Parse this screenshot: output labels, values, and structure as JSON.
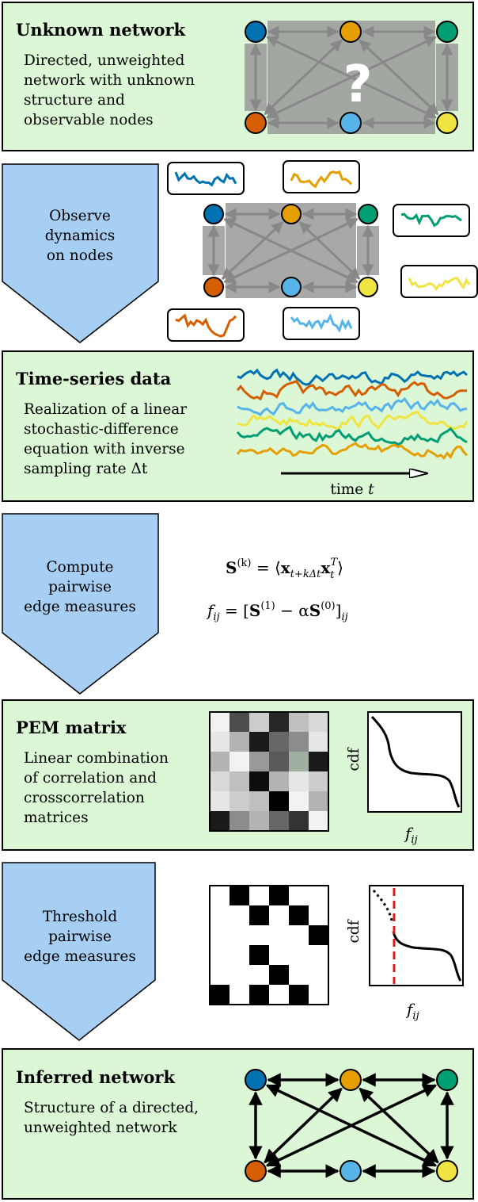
{
  "unknown_network": {
    "title": "Unknown network",
    "description": [
      "Directed, unweighted",
      "network with unknown",
      "structure and",
      "observable nodes"
    ],
    "mark": "?"
  },
  "observe": {
    "lines": [
      "Observe",
      "dynamics",
      "on nodes"
    ]
  },
  "time_series": {
    "title": "Time-series data",
    "description": [
      "Realization of a linear",
      "stochastic-difference",
      "equation with inverse",
      "sampling rate Δt"
    ],
    "axis_label": [
      "time ",
      "t"
    ]
  },
  "compute": {
    "lines": [
      "Compute",
      "pairwise",
      "edge measures"
    ],
    "formulas": [
      [
        "S",
        "(k)",
        " = ⟨",
        "x",
        "t+kΔt",
        "x",
        "t",
        "T",
        "⟩"
      ],
      [
        "f",
        "ij",
        " = [",
        "S",
        "(1)",
        " − α",
        "S",
        "(0)",
        "]",
        "ij"
      ]
    ]
  },
  "pem_matrix": {
    "title": "PEM matrix",
    "description": [
      "Linear combination",
      "of correlation and",
      "crosscorrelation",
      "matrices"
    ],
    "y_label": "cdf",
    "x_label": [
      "f",
      "ij"
    ]
  },
  "threshold": {
    "lines": [
      "Threshold",
      "pairwise",
      "edge measures"
    ],
    "y_label": "cdf",
    "x_label": [
      "f",
      "ij"
    ]
  },
  "inferred_network": {
    "title": "Inferred network",
    "description": [
      "Structure of a directed,",
      "unweighted network"
    ]
  }
}
